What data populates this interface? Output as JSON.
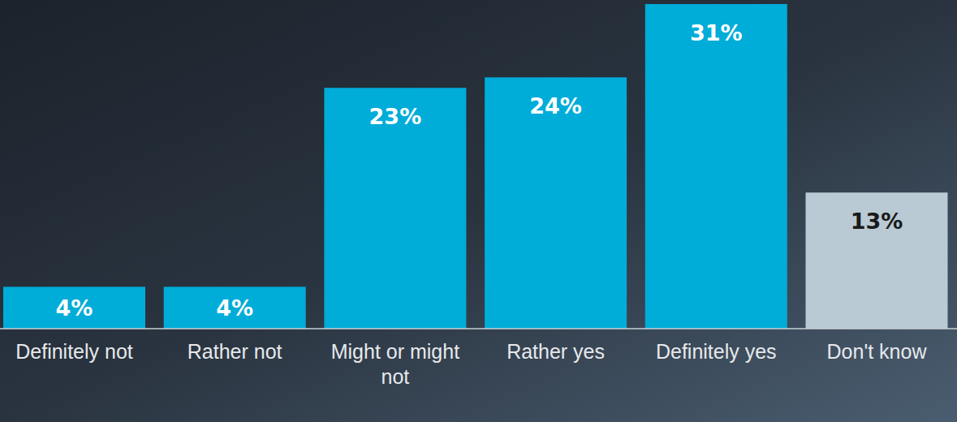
{
  "chart_data": {
    "type": "bar",
    "categories": [
      "Definitely not",
      "Rather not",
      "Might or might not",
      "Rather yes",
      "Definitely yes",
      "Don't know"
    ],
    "values": [
      4,
      4,
      23,
      24,
      31,
      13
    ],
    "value_labels": [
      "4%",
      "4%",
      "23%",
      "24%",
      "31%",
      "13%"
    ],
    "colors": [
      "#00acd8",
      "#00acd8",
      "#00acd8",
      "#00acd8",
      "#00acd8",
      "#b9cad4"
    ],
    "ylim": [
      0,
      31
    ],
    "data_labels": true,
    "tick_labels": "x"
  }
}
